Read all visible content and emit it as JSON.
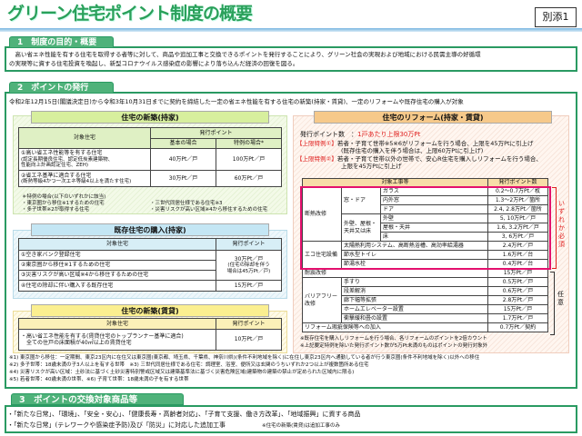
{
  "title": "グリーン住宅ポイント制度の概要",
  "annex": "別添1",
  "s1": {
    "tab": "1　制度の目的・概要",
    "lines": [
      "　高い省エネ性能を有する住宅を取得する者等に対して、商品や追加工事と交換できるポイントを発行することにより、グリーン社会の実現および地域における民需主導の好循環",
      "の実現等に資する住宅投資を喚起し、新型コロナウイルス感染症の影響により落ち込んだ経済の回復を図る。"
    ]
  },
  "s2": {
    "tab": "2　ポイントの発行",
    "intro": "令和2年12月15日(閣議決定日)から令和3年10月31日までに契約を締結した一定の省エネ性能を有する住宅の新築(持家・賃貸)、一定のリフォームや既存住宅の購入が対象",
    "new_own": {
      "header": "住宅の新築(持家)",
      "col_target": "対象住宅",
      "col_points": "発行ポイント",
      "col_basic": "基本の場合",
      "col_special": "特例の場合*",
      "rows": [
        {
          "t1": "①高い省エネ性能等を有する住宅",
          "t2": "(認定長期優良住宅、認定低炭素建築物、",
          "t3": "性能向上計画認定住宅、ZEH)",
          "basic": "40万Pt／戸",
          "special": "100万Pt／戸"
        },
        {
          "t1": "②省エネ基準に適合する住宅",
          "t2": "(断熱等級4かつ一次エネ等級4以上を満たす住宅)",
          "basic": "30万Pt／戸",
          "special": "60万Pt／戸"
        }
      ],
      "notes": [
        "＊特例の場合(以下のいずれかに該当)",
        "・東京圏から移住※1するための住宅",
        "・多子世帯※2が取得する住宅",
        "・三世代同居仕様である住宅※3",
        "・災害リスクが高い区域※4から移住するための住宅"
      ]
    },
    "existing": {
      "header": "既存住宅の購入(持家)",
      "col_target": "対象住宅",
      "col_points": "発行ポイント",
      "rows": [
        "①空き家バンク登録住宅",
        "②東京圏から移住※1するための住宅",
        "③災害リスクが高い区域※4から移住するための住宅",
        "④住宅の除却に伴い購入する既存住宅"
      ],
      "points_a": "30万Pt／戸",
      "points_a_note1": "(住宅の除却を伴う",
      "points_a_note2": "場合は45万Pt／戸)",
      "points_b": "15万Pt／戸"
    },
    "new_rent": {
      "header": "住宅の新築(賃貸)",
      "col_target": "対象住宅",
      "col_points": "発行ポイント",
      "t1": "・高い省エネ性能を有する(賃貸住宅のトップランナー基準に適合)",
      "t2": "　全ての住戸の床面積が40㎡以上の賃貸住宅",
      "points": "10万Pt／戸"
    },
    "footnotes": [
      "※1) 東京圏から移住：一定期間、東京23区内に在住又は東京圏(東京都、埼玉県、千葉県、神奈川県)(条件不利地域を除く)に在住し東京23区内へ通勤している者が行う東京圏(条件不利地域を除く)以外への移住",
      "※2) 多子世帯：18歳未満の子3人以上を有する世帯　※3) 三世代同居仕様である住宅：調理室、浴室、便所又は玄関のうちいずれか2つ以上が複数箇所ある住宅",
      "※4) 災害リスクが高い区域：土砂法に基づく土砂災害特別警戒区域又は建築基準法に基づく災害危険区域(建築物の建築の禁止が定められた区域内に限る)",
      "※5) 若者世帯：40歳未満の世帯、※6) 子育て世帯：18歳未満の子を有する世帯"
    ],
    "reform": {
      "header": "住宅のリフォーム(持家・賃貸)",
      "points_label": "発行ポイント数　：",
      "points_value": "1戸あたり上限30万Pt",
      "sp1_label": "【上限特例①】",
      "sp1_text": "若者・子育て世帯※5※6がリフォームを行う場合、上限を45万Ptに引上げ",
      "sp1_text2": "(既存住宅の購入を伴う場合は、上限60万Ptに引上げ)",
      "sp2_label": "【上限特例②】",
      "sp2_text": "若者・子育て世帯以外の世帯で、安心R住宅を購入しリフォームを行う場合、",
      "sp2_text2": "上限を45万Ptに引上げ",
      "col_work": "対象工事等",
      "col_points": "発行ポイント数",
      "insul": "断熱改修",
      "window_door": "窓・ドア",
      "wall_roof": "外壁、屋根・天井又は床",
      "eco": "エコ住宅設備",
      "quake": "耐震改修",
      "barrier": "バリアフリー改修",
      "items": [
        {
          "n": "ガラス",
          "p": "0.2～0.7万Pt／枚"
        },
        {
          "n": "内外窓",
          "p": "1.3～2万Pt／箇所"
        },
        {
          "n": "ドア",
          "p": "2.4, 2.8万Pt／箇所"
        },
        {
          "n": "外壁",
          "p": "5, 10万Pt／戸"
        },
        {
          "n": "屋根・天井",
          "p": "1.6, 3.2万Pt／戸"
        },
        {
          "n": "床",
          "p": "3, 6万Pt／戸"
        },
        {
          "n": "太陽熱利用システム、高断熱浴槽、高効率給湯器",
          "p": "2.4万Pt／戸"
        },
        {
          "n": "節水型トイレ",
          "p": "1.6万Pt／台"
        },
        {
          "n": "節湯水栓",
          "p": "0.4万Pt／台"
        },
        {
          "n": "",
          "p": "15万Pt／戸"
        },
        {
          "n": "手すり",
          "p": "0.5万Pt／戸"
        },
        {
          "n": "段差解消",
          "p": "0.6万Pt／戸"
        },
        {
          "n": "廊下幅等拡張",
          "p": "2.8万Pt／戸"
        },
        {
          "n": "ホームエレベーター設置",
          "p": "15万Pt／戸"
        },
        {
          "n": "衝撃緩和畳の設置",
          "p": "1.7万Pt／戸"
        },
        {
          "n": "リフォーム瑕疵保険等への加入",
          "p": "0.7万Pt／契約"
        }
      ],
      "required": "いずれか必須",
      "optional": "任意",
      "notes": [
        "※既存住宅を購入しリフォームを行う場合、各リフォームのポイントを2倍カウント",
        "※上記要定特例を除いた発行ポイント数が5万Pt未満のものはポイントの発行対象外"
      ]
    }
  },
  "s3": {
    "tab": "3　ポイントの交換対象商品等",
    "lines": [
      "・「新たな日常」、「環境」、「安全・安心」、「健康長寿・高齢者対応」、「子育て支援、働き方改革」、「地域振興」に資する商品",
      "・「新たな日常」(テレワークや感染症予防)及び「防災」に対応した追加工事"
    ],
    "note": "※住宅の新築(賃貸)は追加工事のみ"
  },
  "colors": {
    "title": "#2aa05a",
    "section": "#2a9a62",
    "required": "#e0201e",
    "frame": "#e4106e"
  }
}
